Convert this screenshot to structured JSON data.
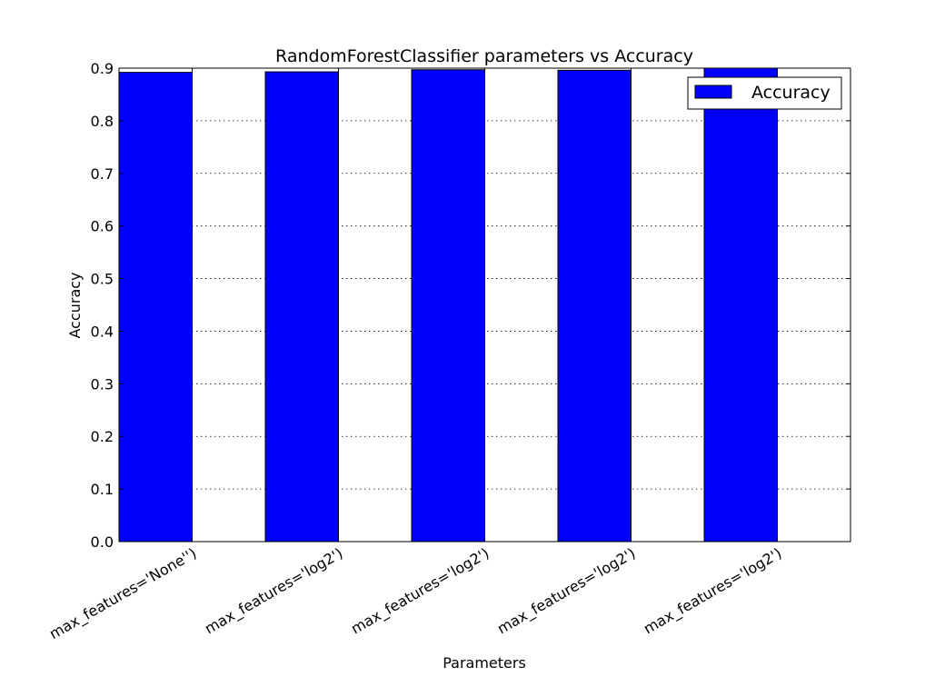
{
  "chart_data": {
    "type": "bar",
    "title": "RandomForestClassifier parameters vs Accuracy",
    "xlabel": "Parameters",
    "ylabel": "Accuracy",
    "categories": [
      "max_features='None'')",
      "max_features='log2')",
      "max_features='log2')",
      "max_features='log2')",
      "max_features='log2')"
    ],
    "series": [
      {
        "name": "Accuracy",
        "color": "#0000ff",
        "values": [
          0.892,
          0.893,
          0.897,
          0.896,
          0.9
        ]
      }
    ],
    "ylim": [
      0,
      0.9
    ],
    "yticks": [
      "0.0",
      "0.1",
      "0.2",
      "0.3",
      "0.4",
      "0.5",
      "0.6",
      "0.7",
      "0.8",
      "0.9"
    ],
    "grid": true,
    "legend_position": "top-right"
  }
}
